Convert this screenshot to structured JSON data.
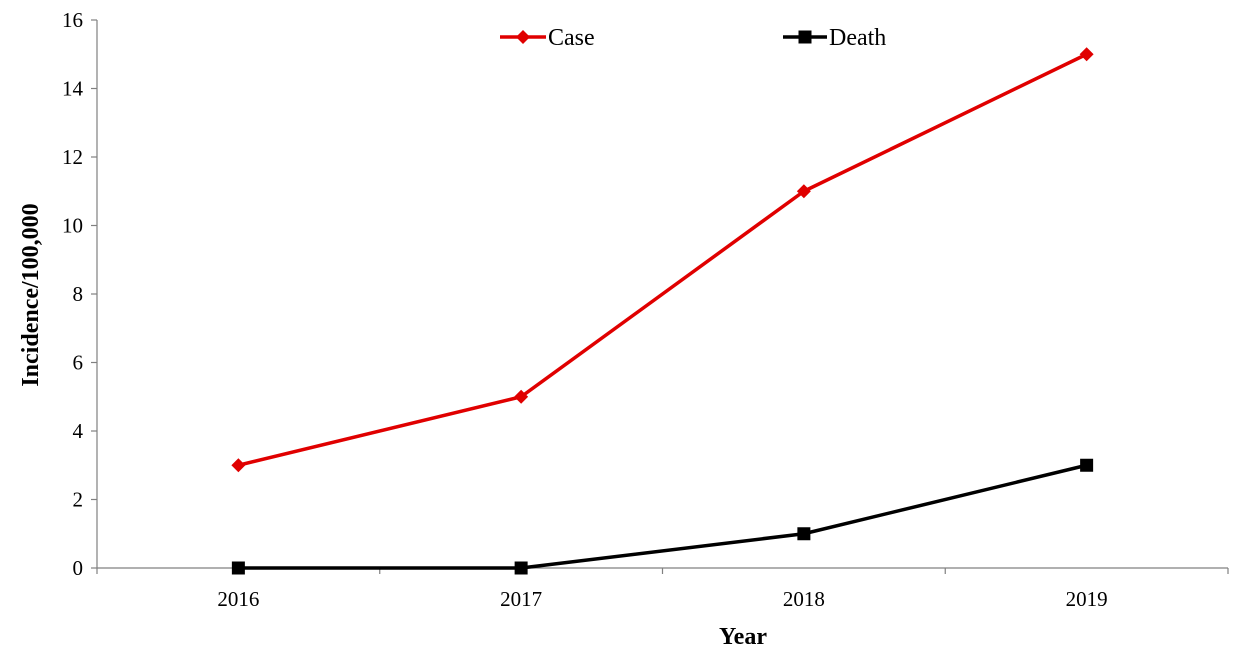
{
  "chart_data": {
    "type": "line",
    "categories": [
      "2016",
      "2017",
      "2018",
      "2019"
    ],
    "series": [
      {
        "name": "Case",
        "values": [
          3,
          5,
          11,
          15
        ],
        "color": "#e00000",
        "marker": "diamond"
      },
      {
        "name": "Death",
        "values": [
          0,
          0,
          1,
          3
        ],
        "color": "#000000",
        "marker": "square"
      }
    ],
    "xlabel": "Year",
    "ylabel": "Incidence/100,000",
    "ylim": [
      0,
      16
    ],
    "yticks": [
      "0",
      "2",
      "4",
      "6",
      "8",
      "10",
      "12",
      "14",
      "16"
    ],
    "grid": false,
    "legend_position": "top-center"
  }
}
